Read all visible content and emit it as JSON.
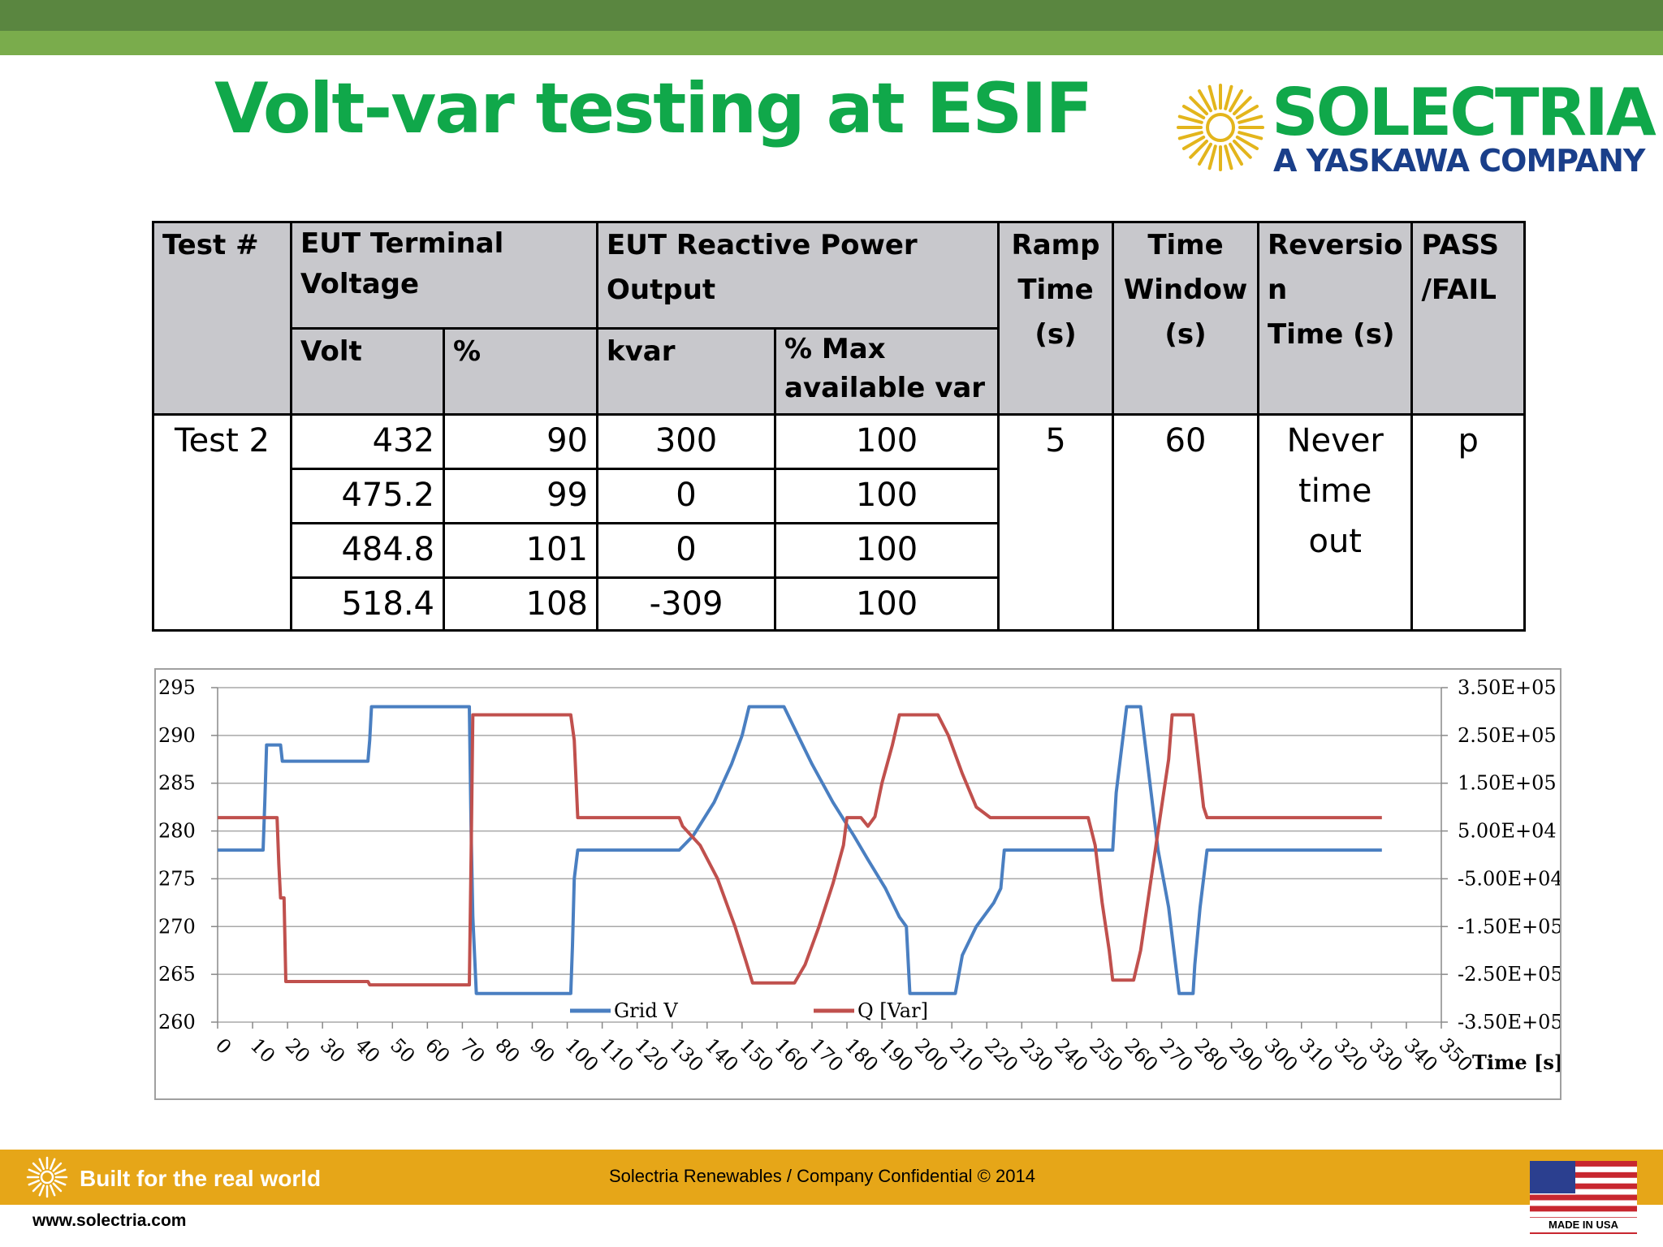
{
  "slide": {
    "title": "Volt-var testing at ESIF",
    "logo": {
      "name": "SOLECTRIA",
      "subtitle": "A YASKAWA COMPANY"
    },
    "colors": {
      "green_title": "#10a84a",
      "top_bar": "#5a8640",
      "footer": "#e6a618",
      "navy": "#1a3f8a"
    }
  },
  "table": {
    "headers": {
      "test": "Test #",
      "voltage": "EUT Terminal Voltage",
      "reactive": "EUT Reactive Power Output",
      "ramp": "Ramp Time (s)",
      "window": "Time Window (s)",
      "reversion": "Reversion Time (s)",
      "pass": "PASS /FAIL",
      "volt": "Volt",
      "pct": "%",
      "kvar": "kvar",
      "pctmax": "% Max available var"
    },
    "header_lines": {
      "ramp": [
        "Ramp",
        "Time",
        "(s)"
      ],
      "window": [
        "Time",
        "Window",
        "(s)"
      ],
      "reversion": [
        "Reversio",
        "n",
        "Time (s)"
      ],
      "pass": [
        "PASS",
        "/FAIL"
      ],
      "pctmax": [
        "% Max",
        "available var"
      ]
    },
    "test_name": "Test 2",
    "rows": [
      {
        "volt": "432",
        "pct": "90",
        "kvar": "300",
        "pctmax": "100"
      },
      {
        "volt": "475.2",
        "pct": "99",
        "kvar": "0",
        "pctmax": "100"
      },
      {
        "volt": "484.8",
        "pct": "101",
        "kvar": "0",
        "pctmax": "100"
      },
      {
        "volt": "518.4",
        "pct": "108",
        "kvar": "-309",
        "pctmax": "100"
      }
    ],
    "ramp": "5",
    "window": "60",
    "reversion_lines": [
      "Never",
      "time",
      "out"
    ],
    "pass": "p"
  },
  "chart_data": {
    "type": "line",
    "xlabel": "Time [s]",
    "x_ticks": [
      0,
      10,
      20,
      30,
      40,
      50,
      60,
      70,
      80,
      90,
      100,
      110,
      120,
      130,
      140,
      150,
      160,
      170,
      180,
      190,
      200,
      210,
      220,
      230,
      240,
      250,
      260,
      270,
      280,
      290,
      300,
      310,
      320,
      330,
      340,
      350
    ],
    "xlim": [
      0,
      350
    ],
    "ylim_left": [
      260,
      295
    ],
    "left_ticks": [
      "260",
      "265",
      "270",
      "275",
      "280",
      "285",
      "290",
      "295"
    ],
    "ylim_right": [
      -350000,
      350000
    ],
    "right_ticks": [
      "-3.50E+05",
      "-2.50E+05",
      "-1.50E+05",
      "-5.00E+04",
      "5.00E+04",
      "1.50E+05",
      "2.50E+05",
      "3.50E+05"
    ],
    "grid": "horizontal",
    "legend": "bottom-center",
    "series": [
      {
        "name": "Grid V",
        "axis": "left",
        "color": "#4a7fc1",
        "points": [
          [
            0,
            278
          ],
          [
            13,
            278
          ],
          [
            13.5,
            283
          ],
          [
            14,
            289
          ],
          [
            18,
            289
          ],
          [
            18.5,
            287.3
          ],
          [
            43,
            287.3
          ],
          [
            43.5,
            289.5
          ],
          [
            44,
            293
          ],
          [
            72,
            293
          ],
          [
            72.5,
            280
          ],
          [
            73,
            271
          ],
          [
            74,
            263
          ],
          [
            101,
            263
          ],
          [
            101.5,
            268
          ],
          [
            102,
            275
          ],
          [
            103,
            278
          ],
          [
            132,
            278
          ],
          [
            136,
            279.5
          ],
          [
            142,
            283
          ],
          [
            147,
            287
          ],
          [
            150,
            290
          ],
          [
            152,
            293
          ],
          [
            162,
            293
          ],
          [
            166,
            290
          ],
          [
            170,
            287
          ],
          [
            176,
            283
          ],
          [
            182,
            279.5
          ],
          [
            186,
            277
          ],
          [
            191,
            274
          ],
          [
            195,
            271
          ],
          [
            197,
            270
          ],
          [
            198,
            263
          ],
          [
            211,
            263
          ],
          [
            213,
            267
          ],
          [
            217,
            270
          ],
          [
            222,
            272.5
          ],
          [
            224,
            274
          ],
          [
            225,
            278
          ],
          [
            256,
            278
          ],
          [
            257,
            284
          ],
          [
            259,
            290
          ],
          [
            260,
            293
          ],
          [
            264,
            293
          ],
          [
            265,
            290
          ],
          [
            267,
            284
          ],
          [
            269,
            278
          ],
          [
            272,
            272
          ],
          [
            274,
            266
          ],
          [
            275,
            263
          ],
          [
            279,
            263
          ],
          [
            279.5,
            266
          ],
          [
            281,
            272
          ],
          [
            283,
            278
          ],
          [
            333,
            278
          ]
        ]
      },
      {
        "name": "Q [Var]",
        "axis": "right",
        "color": "#c0504d",
        "points": [
          [
            0,
            78000
          ],
          [
            17,
            78000
          ],
          [
            17.5,
            -20000
          ],
          [
            18,
            -90000
          ],
          [
            19,
            -90000
          ],
          [
            19.5,
            -265000
          ],
          [
            43,
            -265000
          ],
          [
            43.5,
            -272000
          ],
          [
            72,
            -272000
          ],
          [
            72.5,
            0
          ],
          [
            73,
            293000
          ],
          [
            101,
            293000
          ],
          [
            102,
            240000
          ],
          [
            103,
            78000
          ],
          [
            132,
            78000
          ],
          [
            133,
            60000
          ],
          [
            138,
            20000
          ],
          [
            143,
            -50000
          ],
          [
            148,
            -150000
          ],
          [
            151,
            -220000
          ],
          [
            153,
            -268000
          ],
          [
            165,
            -268000
          ],
          [
            168,
            -230000
          ],
          [
            172,
            -150000
          ],
          [
            176,
            -60000
          ],
          [
            179,
            20000
          ],
          [
            180,
            78000
          ],
          [
            184,
            78000
          ],
          [
            186,
            60000
          ],
          [
            188,
            80000
          ],
          [
            190,
            150000
          ],
          [
            193,
            230000
          ],
          [
            195,
            293000
          ],
          [
            206,
            293000
          ],
          [
            209,
            250000
          ],
          [
            213,
            170000
          ],
          [
            217,
            100000
          ],
          [
            221,
            78000
          ],
          [
            249,
            78000
          ],
          [
            251,
            20000
          ],
          [
            253,
            -100000
          ],
          [
            255,
            -200000
          ],
          [
            256,
            -262000
          ],
          [
            262,
            -262000
          ],
          [
            264,
            -200000
          ],
          [
            266,
            -100000
          ],
          [
            268,
            0
          ],
          [
            270,
            100000
          ],
          [
            272,
            200000
          ],
          [
            273,
            293000
          ],
          [
            279,
            293000
          ],
          [
            280,
            230000
          ],
          [
            282,
            100000
          ],
          [
            283,
            78000
          ],
          [
            333,
            78000
          ]
        ]
      }
    ]
  },
  "footer": {
    "tagline": "Built for the real world",
    "confidential": "Solectria Renewables / Company Confidential © 2014",
    "website": "www.solectria.com",
    "made": "MADE IN USA"
  }
}
